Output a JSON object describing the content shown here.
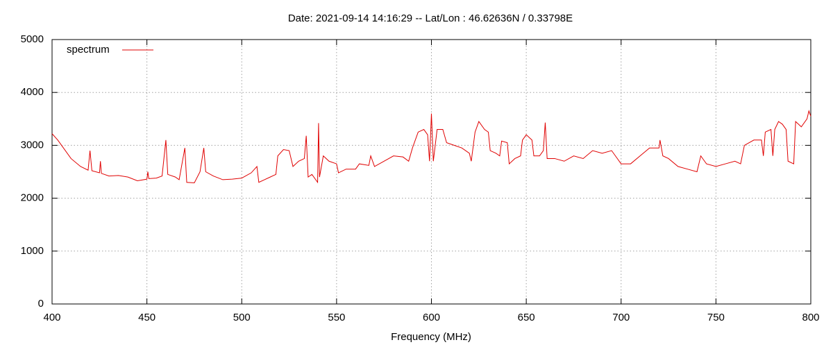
{
  "chart_data": {
    "type": "line",
    "title": "Date: 2021-09-14 14:16:29  --  Lat/Lon : 46.62636N / 0.33798E",
    "x_label": "Frequency (MHz)",
    "x": [
      400,
      403,
      406,
      410,
      415,
      419,
      420,
      421,
      425,
      425.5,
      426,
      430,
      435,
      440,
      445,
      450,
      450.5,
      451,
      455,
      458,
      460,
      461,
      465,
      467,
      470,
      471,
      475,
      478,
      480,
      481,
      485,
      490,
      495,
      500,
      505,
      508,
      509,
      512,
      515,
      518,
      519,
      522,
      525,
      527,
      530,
      533,
      534,
      535,
      537,
      540,
      540.5,
      541,
      543,
      546,
      550,
      551,
      555,
      560,
      562,
      567,
      568,
      570,
      575,
      580,
      585,
      588,
      590,
      593,
      596,
      598,
      599,
      600,
      601,
      603,
      606,
      608,
      612,
      616,
      620,
      621,
      623,
      625,
      628,
      630,
      631,
      634,
      636,
      637,
      640,
      641,
      644,
      647,
      648,
      650,
      653,
      654,
      657,
      659,
      660,
      661,
      665,
      670,
      675,
      680,
      685,
      690,
      695,
      700,
      705,
      710,
      715,
      720,
      720.5,
      722,
      725,
      730,
      735,
      740,
      742,
      745,
      750,
      755,
      760,
      763,
      765,
      770,
      774,
      775,
      776,
      779,
      780,
      781,
      783,
      785,
      787,
      788,
      791,
      792,
      795,
      798,
      799,
      800
    ],
    "series": [
      {
        "name": "spectrum",
        "color": "#e00000",
        "values": [
          3220,
          3100,
          2950,
          2750,
          2600,
          2530,
          2900,
          2520,
          2480,
          2700,
          2470,
          2420,
          2430,
          2400,
          2330,
          2360,
          2500,
          2370,
          2380,
          2420,
          3100,
          2450,
          2400,
          2350,
          2950,
          2300,
          2290,
          2500,
          2950,
          2500,
          2420,
          2350,
          2360,
          2380,
          2480,
          2600,
          2300,
          2350,
          2400,
          2450,
          2800,
          2920,
          2900,
          2600,
          2700,
          2750,
          3180,
          2400,
          2450,
          2300,
          3420,
          2400,
          2800,
          2700,
          2650,
          2480,
          2550,
          2550,
          2650,
          2620,
          2800,
          2600,
          2700,
          2800,
          2780,
          2700,
          2950,
          3250,
          3300,
          3200,
          2700,
          3600,
          2700,
          3300,
          3300,
          3050,
          3000,
          2950,
          2850,
          2700,
          3250,
          3450,
          3300,
          3250,
          2900,
          2850,
          2800,
          3080,
          3050,
          2650,
          2750,
          2800,
          3100,
          3200,
          3100,
          2800,
          2800,
          2900,
          3430,
          2750,
          2750,
          2700,
          2800,
          2750,
          2900,
          2850,
          2900,
          2650,
          2650,
          2800,
          2950,
          2950,
          3100,
          2800,
          2750,
          2600,
          2550,
          2500,
          2800,
          2650,
          2600,
          2650,
          2700,
          2650,
          3000,
          3100,
          3100,
          2800,
          3250,
          3300,
          2800,
          3300,
          3450,
          3400,
          3300,
          2700,
          2650,
          3450,
          3350,
          3500,
          3650,
          3550
        ]
      }
    ],
    "xlim": [
      400,
      800
    ],
    "xticks": [
      400,
      450,
      500,
      550,
      600,
      650,
      700,
      750,
      800
    ],
    "ylim": [
      0,
      5000
    ],
    "yticks": [
      0,
      1000,
      2000,
      3000,
      4000,
      5000
    ],
    "grid": true,
    "legend": "top-left"
  }
}
